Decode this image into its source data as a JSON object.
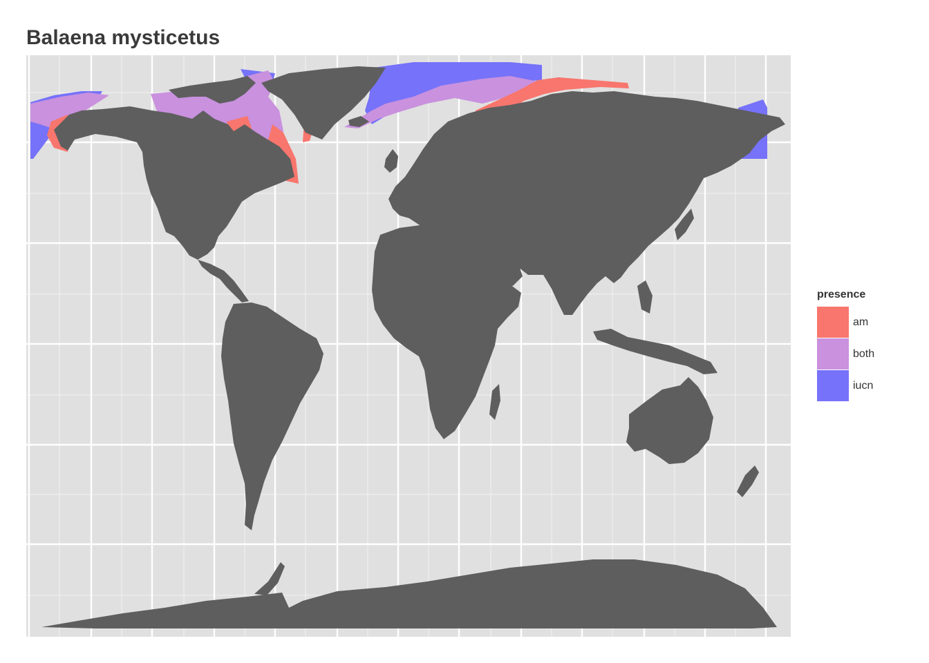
{
  "title": "Balaena mysticetus",
  "legend": {
    "title": "presence",
    "items": [
      {
        "label": "am",
        "color": "#F8766D"
      },
      {
        "label": "both",
        "color": "#C991DE"
      },
      {
        "label": "iucn",
        "color": "#7672F9"
      }
    ]
  },
  "colors": {
    "panel_background": "#E0E0E0",
    "land": "#5E5E5E",
    "grid": "#FFFFFF"
  }
}
